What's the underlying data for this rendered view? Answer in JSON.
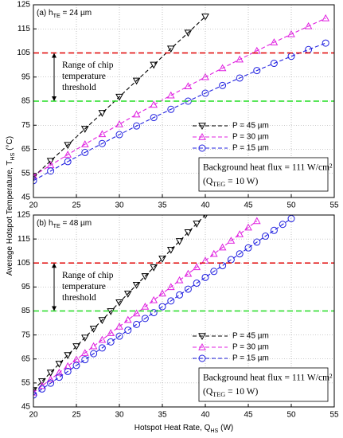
{
  "chart_data": [
    {
      "type": "line",
      "panel_label": {
        "main": "(a) h",
        "sub": "TE",
        "tail": " = 24 µm"
      },
      "ylabel": {
        "main": "Average Hotspot Temperature, T",
        "sub": "HS",
        "tail": " (°C)"
      },
      "xlim": [
        20,
        55
      ],
      "xticks": [
        20,
        25,
        30,
        35,
        40,
        45,
        50,
        55
      ],
      "ylim": [
        45,
        125
      ],
      "yticks": [
        45,
        55,
        65,
        75,
        85,
        95,
        105,
        115,
        125
      ],
      "grid": true,
      "hlines": [
        {
          "value": 105,
          "color": "#e00000"
        },
        {
          "value": 85,
          "color": "#22dd22"
        }
      ],
      "annotation": [
        "Range of chip",
        "temperature",
        "threshold"
      ],
      "note": {
        "line1": "Background heat flux = 111 W/cm²",
        "line2": {
          "main": "(Q",
          "sub": "TEG",
          "tail": " = 10 W)"
        }
      },
      "series": [
        {
          "name": "P = 45 µm",
          "color": "#000000",
          "marker": "triangle-down",
          "x": [
            20,
            22,
            24,
            26,
            28,
            30,
            32,
            34,
            36,
            38,
            40
          ],
          "values": [
            53.5,
            60.2,
            66.8,
            73.5,
            80.1,
            86.8,
            93.5,
            100.1,
            106.8,
            113.4,
            120.1
          ]
        },
        {
          "name": "P = 30 µm",
          "color": "#e020e0",
          "marker": "triangle-up",
          "x": [
            20,
            22,
            24,
            26,
            28,
            30,
            32,
            34,
            36,
            38,
            40,
            42,
            44,
            46,
            48,
            50,
            52,
            54
          ],
          "values": [
            54,
            58.4,
            62.8,
            67.1,
            71.3,
            75.4,
            79.5,
            83.5,
            87.4,
            91.2,
            95.0,
            98.7,
            102.3,
            105.9,
            109.4,
            112.8,
            116.1,
            119.4
          ]
        },
        {
          "name": "P = 15 µm",
          "color": "#2020e0",
          "marker": "circle",
          "x": [
            20,
            22,
            24,
            26,
            28,
            30,
            32,
            34,
            36,
            38,
            40,
            42,
            44,
            46,
            48,
            50,
            52,
            54
          ],
          "values": [
            52,
            56.0,
            59.9,
            63.7,
            67.4,
            71.1,
            74.7,
            78.2,
            81.6,
            85.0,
            88.3,
            91.5,
            94.6,
            97.7,
            100.7,
            103.6,
            106.4,
            109.1
          ]
        }
      ]
    },
    {
      "type": "line",
      "panel_label": {
        "main": "(b) h",
        "sub": "TE",
        "tail": " = 48 µm"
      },
      "xlabel": {
        "main": "Hotspot Heat Rate, Q",
        "sub": "HS",
        "tail": " (W)"
      },
      "xlim": [
        20,
        55
      ],
      "xticks": [
        20,
        25,
        30,
        35,
        40,
        45,
        50,
        55
      ],
      "ylim": [
        45,
        125
      ],
      "yticks": [
        45,
        55,
        65,
        75,
        85,
        95,
        105,
        115,
        125
      ],
      "grid": true,
      "hlines": [
        {
          "value": 105,
          "color": "#e00000"
        },
        {
          "value": 85,
          "color": "#22dd22"
        }
      ],
      "annotation": [
        "Range of chip",
        "temperature",
        "threshold"
      ],
      "note": {
        "line1": "Background heat flux = 111 W/cm²",
        "line2": {
          "main": "(Q",
          "sub": "TEG",
          "tail": " = 10 W)"
        }
      },
      "series": [
        {
          "name": "P = 45 µm",
          "color": "#000000",
          "marker": "triangle-down",
          "x": [
            20,
            21,
            22,
            23,
            24,
            25,
            26,
            27,
            28,
            29,
            30,
            31,
            32,
            33,
            34,
            35,
            36,
            37,
            38,
            39,
            40
          ],
          "values": [
            52,
            55.7,
            59.3,
            63.0,
            66.6,
            70.3,
            73.9,
            77.6,
            81.2,
            84.9,
            88.6,
            92.2,
            95.9,
            99.5,
            103.2,
            106.8,
            110.5,
            114.1,
            117.8,
            121.4,
            125
          ]
        },
        {
          "name": "P = 30 µm",
          "color": "#e020e0",
          "marker": "triangle-up",
          "x": [
            20,
            21,
            22,
            23,
            24,
            25,
            26,
            27,
            28,
            29,
            30,
            31,
            32,
            33,
            34,
            35,
            36,
            37,
            38,
            39,
            40,
            41,
            42,
            43,
            44,
            45,
            46
          ],
          "values": [
            51,
            53.8,
            56.5,
            59.3,
            62.0,
            64.8,
            67.5,
            70.3,
            73.0,
            75.8,
            78.5,
            81.3,
            84.0,
            86.8,
            89.5,
            92.3,
            95.0,
            97.8,
            100.5,
            103.3,
            106.0,
            108.8,
            111.5,
            114.3,
            117.0,
            119.8,
            122.5
          ]
        },
        {
          "name": "P = 15 µm",
          "color": "#2020e0",
          "marker": "circle",
          "x": [
            20,
            21,
            22,
            23,
            24,
            25,
            26,
            27,
            28,
            29,
            30,
            31,
            32,
            33,
            34,
            35,
            36,
            37,
            38,
            39,
            40,
            41,
            42,
            43,
            44,
            45,
            46,
            47,
            48,
            49,
            50
          ],
          "values": [
            50,
            52.5,
            54.9,
            57.4,
            59.8,
            62.3,
            64.7,
            67.2,
            69.6,
            72.1,
            74.5,
            77.0,
            79.4,
            81.9,
            84.3,
            86.8,
            89.2,
            91.7,
            94.1,
            96.6,
            99.0,
            101.5,
            103.9,
            106.4,
            108.8,
            111.3,
            113.7,
            116.2,
            118.6,
            121.1,
            123.5
          ]
        }
      ]
    }
  ]
}
